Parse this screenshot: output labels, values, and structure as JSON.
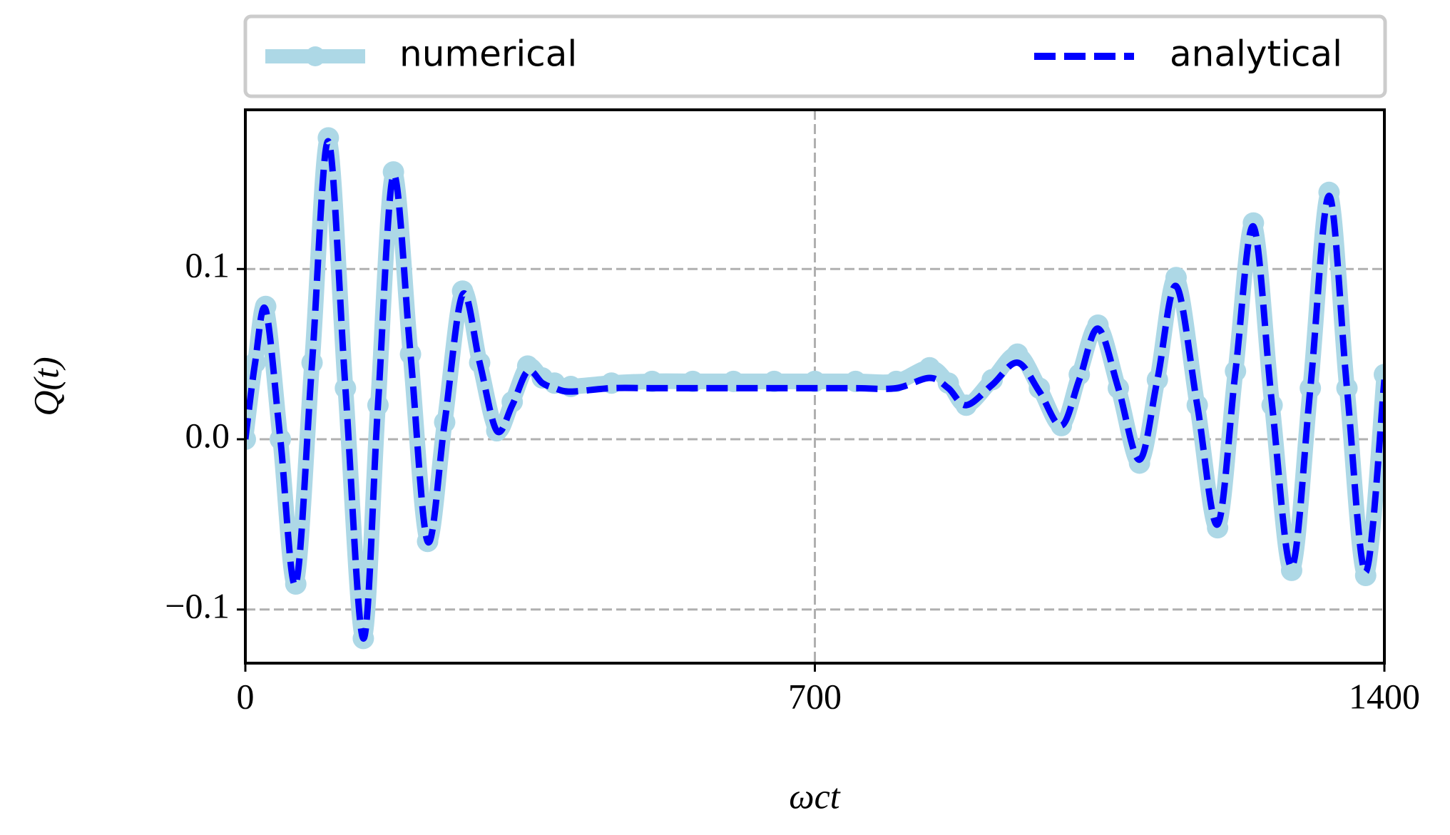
{
  "chart_data": {
    "type": "line",
    "x_label": "ωct",
    "y_label": "Q(t)",
    "x": [
      0,
      12,
      25,
      43,
      62,
      82,
      102,
      123,
      145,
      163,
      182,
      203,
      224,
      245,
      267,
      288,
      309,
      328,
      347,
      365,
      380,
      400,
      450,
      500,
      550,
      600,
      650,
      700,
      750,
      800,
      841,
      864,
      886,
      918,
      949,
      976,
      1003,
      1025,
      1048,
      1073,
      1099,
      1121,
      1144,
      1170,
      1195,
      1217,
      1239,
      1262,
      1286,
      1309,
      1332,
      1354,
      1377,
      1400
    ],
    "series": [
      {
        "name": "numerical",
        "color": "#add8e6",
        "marker": true,
        "dashed": false,
        "values": [
          0,
          0.045,
          0.078,
          0.0,
          -0.085,
          0.045,
          0.177,
          0.03,
          -0.117,
          0.02,
          0.157,
          0.05,
          -0.06,
          0.01,
          0.087,
          0.045,
          0.005,
          0.022,
          0.043,
          0.036,
          0.033,
          0.031,
          0.033,
          0.034,
          0.034,
          0.034,
          0.034,
          0.034,
          0.034,
          0.034,
          0.042,
          0.033,
          0.02,
          0.035,
          0.05,
          0.03,
          0.008,
          0.038,
          0.067,
          0.03,
          -0.014,
          0.035,
          0.095,
          0.02,
          -0.052,
          0.04,
          0.127,
          0.02,
          -0.077,
          0.03,
          0.145,
          0.03,
          -0.08,
          0.038
        ]
      },
      {
        "name": "analytical",
        "color": "#0000ff",
        "marker": false,
        "dashed": true,
        "values": [
          0,
          0.045,
          0.076,
          0.0,
          -0.085,
          0.045,
          0.175,
          0.03,
          -0.117,
          0.02,
          0.155,
          0.05,
          -0.06,
          0.01,
          0.085,
          0.045,
          0.005,
          0.02,
          0.04,
          0.033,
          0.03,
          0.028,
          0.03,
          0.03,
          0.03,
          0.03,
          0.03,
          0.03,
          0.03,
          0.03,
          0.036,
          0.03,
          0.02,
          0.032,
          0.045,
          0.028,
          0.008,
          0.035,
          0.065,
          0.03,
          -0.012,
          0.035,
          0.09,
          0.02,
          -0.05,
          0.04,
          0.125,
          0.02,
          -0.075,
          0.03,
          0.143,
          0.03,
          -0.078,
          0.035
        ]
      }
    ],
    "xlim": [
      0,
      1400
    ],
    "xticks": [
      0,
      700,
      1400
    ],
    "ylim": [
      -0.1315,
      0.1935
    ],
    "yticks": [
      {
        "value": -0.1,
        "label": "−0.1"
      },
      {
        "value": 0,
        "label": "0.0"
      },
      0.1
    ],
    "grid": true,
    "legend": "top"
  }
}
